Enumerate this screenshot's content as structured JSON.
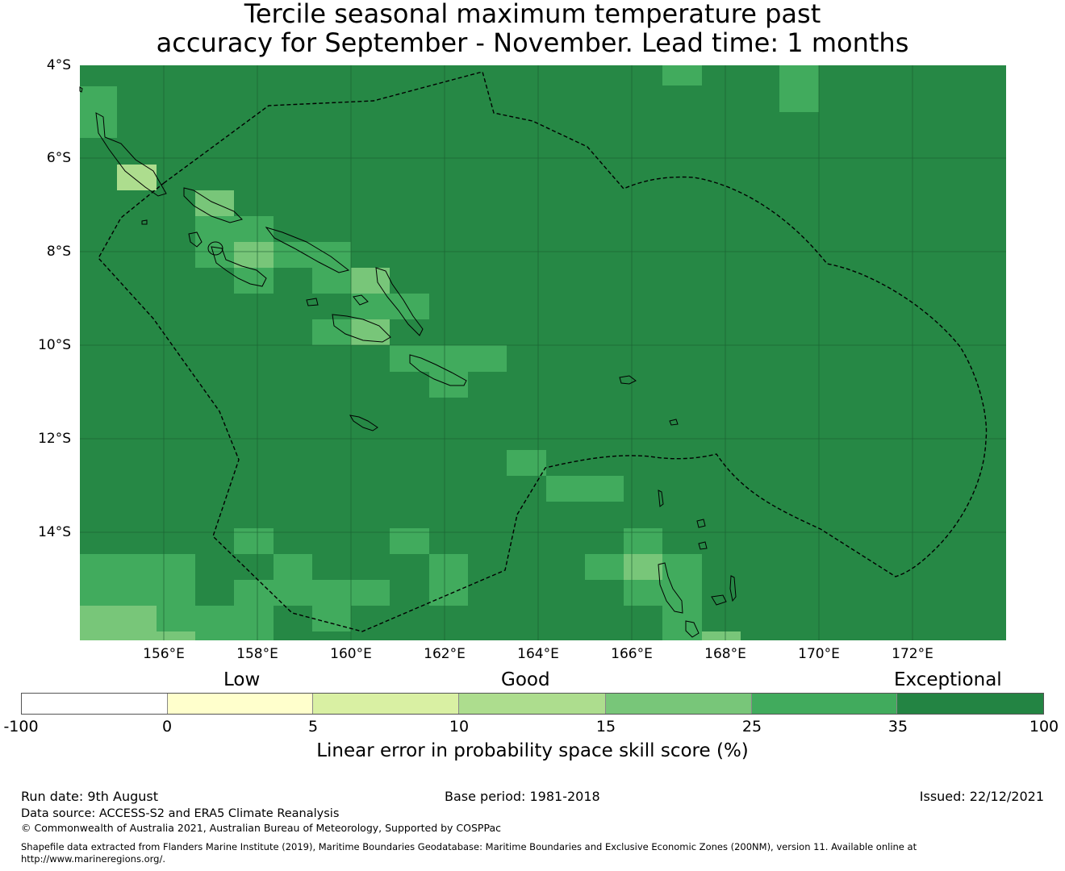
{
  "title": {
    "line1": "Tercile seasonal maximum temperature past",
    "line2": "accuracy for September - November. Lead time: 1 months"
  },
  "map": {
    "background_color": "#268845",
    "lat_labels": [
      "4°S",
      "6°S",
      "8°S",
      "10°S",
      "12°S",
      "14°S"
    ],
    "lon_labels": [
      "156°E",
      "158°E",
      "160°E",
      "162°E",
      "164°E",
      "166°E",
      "168°E",
      "170°E",
      "172°E"
    ],
    "features": [
      "EEZ boundary (dashed)",
      "coastlines",
      "lat/lon gridlines"
    ]
  },
  "legend": {
    "categories": [
      "Low",
      "Good",
      "Exceptional"
    ],
    "ticks": [
      "-100",
      "0",
      "5",
      "10",
      "15",
      "25",
      "35",
      "100"
    ],
    "colors": [
      "#ffffff",
      "#ffffcc",
      "#d9f0a3",
      "#addd8e",
      "#78c679",
      "#41ab5d",
      "#238443"
    ],
    "title": "Linear error in probability space skill score (%)"
  },
  "footer": {
    "run_date": "Run date: 9th August",
    "base_period": "Base period: 1981-2018",
    "issued": "Issued: 22/12/2021",
    "data_source": "Data source: ACCESS-S2 and ERA5 Climate Reanalysis",
    "copyright": "© Commonwealth of Australia 2021, Australian Bureau of Meteorology, Supported by COSPPac",
    "shapefile_line1": "Shapefile data extracted from Flanders Marine Institute (2019), Maritime Boundaries Geodatabase: Maritime Boundaries and Exclusive Economic Zones (200NM), version 11. Available online at",
    "shapefile_line2": "http://www.marineregions.org/."
  }
}
